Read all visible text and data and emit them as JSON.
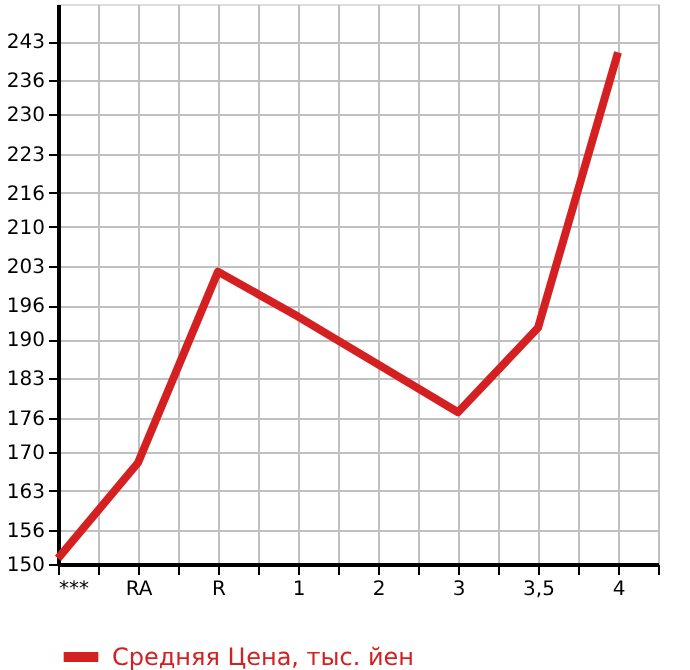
{
  "chart_data": {
    "type": "line",
    "categories": [
      "***",
      "RA",
      "R",
      "1",
      "2",
      "3",
      "3,5",
      "4"
    ],
    "series": [
      {
        "name": "Средняя Цена, тыс. йен",
        "color": "#d42020",
        "values": [
          151,
          168,
          202,
          194,
          185.5,
          177,
          192,
          241
        ]
      }
    ],
    "ylim": [
      150,
      249.6
    ],
    "yticks": [
      150,
      156,
      163,
      170,
      176,
      183,
      190,
      196,
      203,
      210,
      216,
      223,
      230,
      236,
      243
    ],
    "grid": true,
    "legend": "bottom",
    "marker": "none",
    "line_style": "solid"
  }
}
